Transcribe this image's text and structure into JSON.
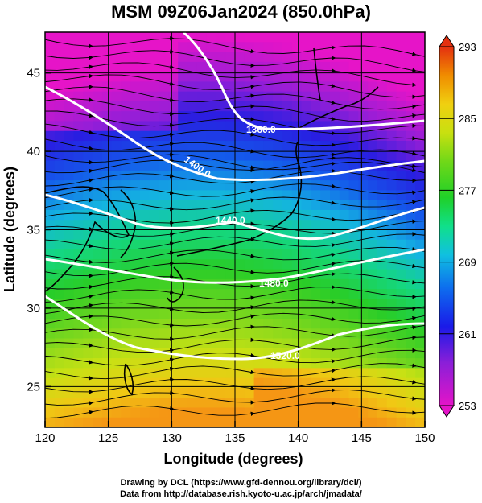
{
  "title": "MSM 09Z06Jan2024 (850.0hPa)",
  "xlabel": "Longitude (degrees)",
  "ylabel": "Latitude  (degrees)",
  "credits": {
    "line1": "Drawing by DCL (https://www.gfd-dennou.org/library/dcl/)",
    "line2": "Data from http://database.rish.kyoto-u.ac.jp/arch/jmadata/"
  },
  "axes": {
    "xticks": [
      "120",
      "125",
      "130",
      "135",
      "140",
      "145",
      "150"
    ],
    "yticks": [
      "25",
      "30",
      "35",
      "40",
      "45"
    ],
    "xrange": [
      120,
      150
    ],
    "yrange": [
      22.4,
      47.6
    ],
    "grid": true
  },
  "colorbar": {
    "min": 253,
    "max": 293,
    "labels": [
      "293",
      "285",
      "277",
      "269",
      "261",
      "253"
    ],
    "colors": [
      "#d21bd2",
      "#7a1fd6",
      "#2020e0",
      "#1066ee",
      "#10b8e0",
      "#10e08a",
      "#20d020",
      "#60d818",
      "#b0e010",
      "#f0e010",
      "#f0a000",
      "#e04010"
    ]
  },
  "contours": [
    {
      "label": "1360.0"
    },
    {
      "label": "1400.0"
    },
    {
      "label": "1440.0"
    },
    {
      "label": "1480.0"
    },
    {
      "label": "1520.0"
    }
  ]
}
